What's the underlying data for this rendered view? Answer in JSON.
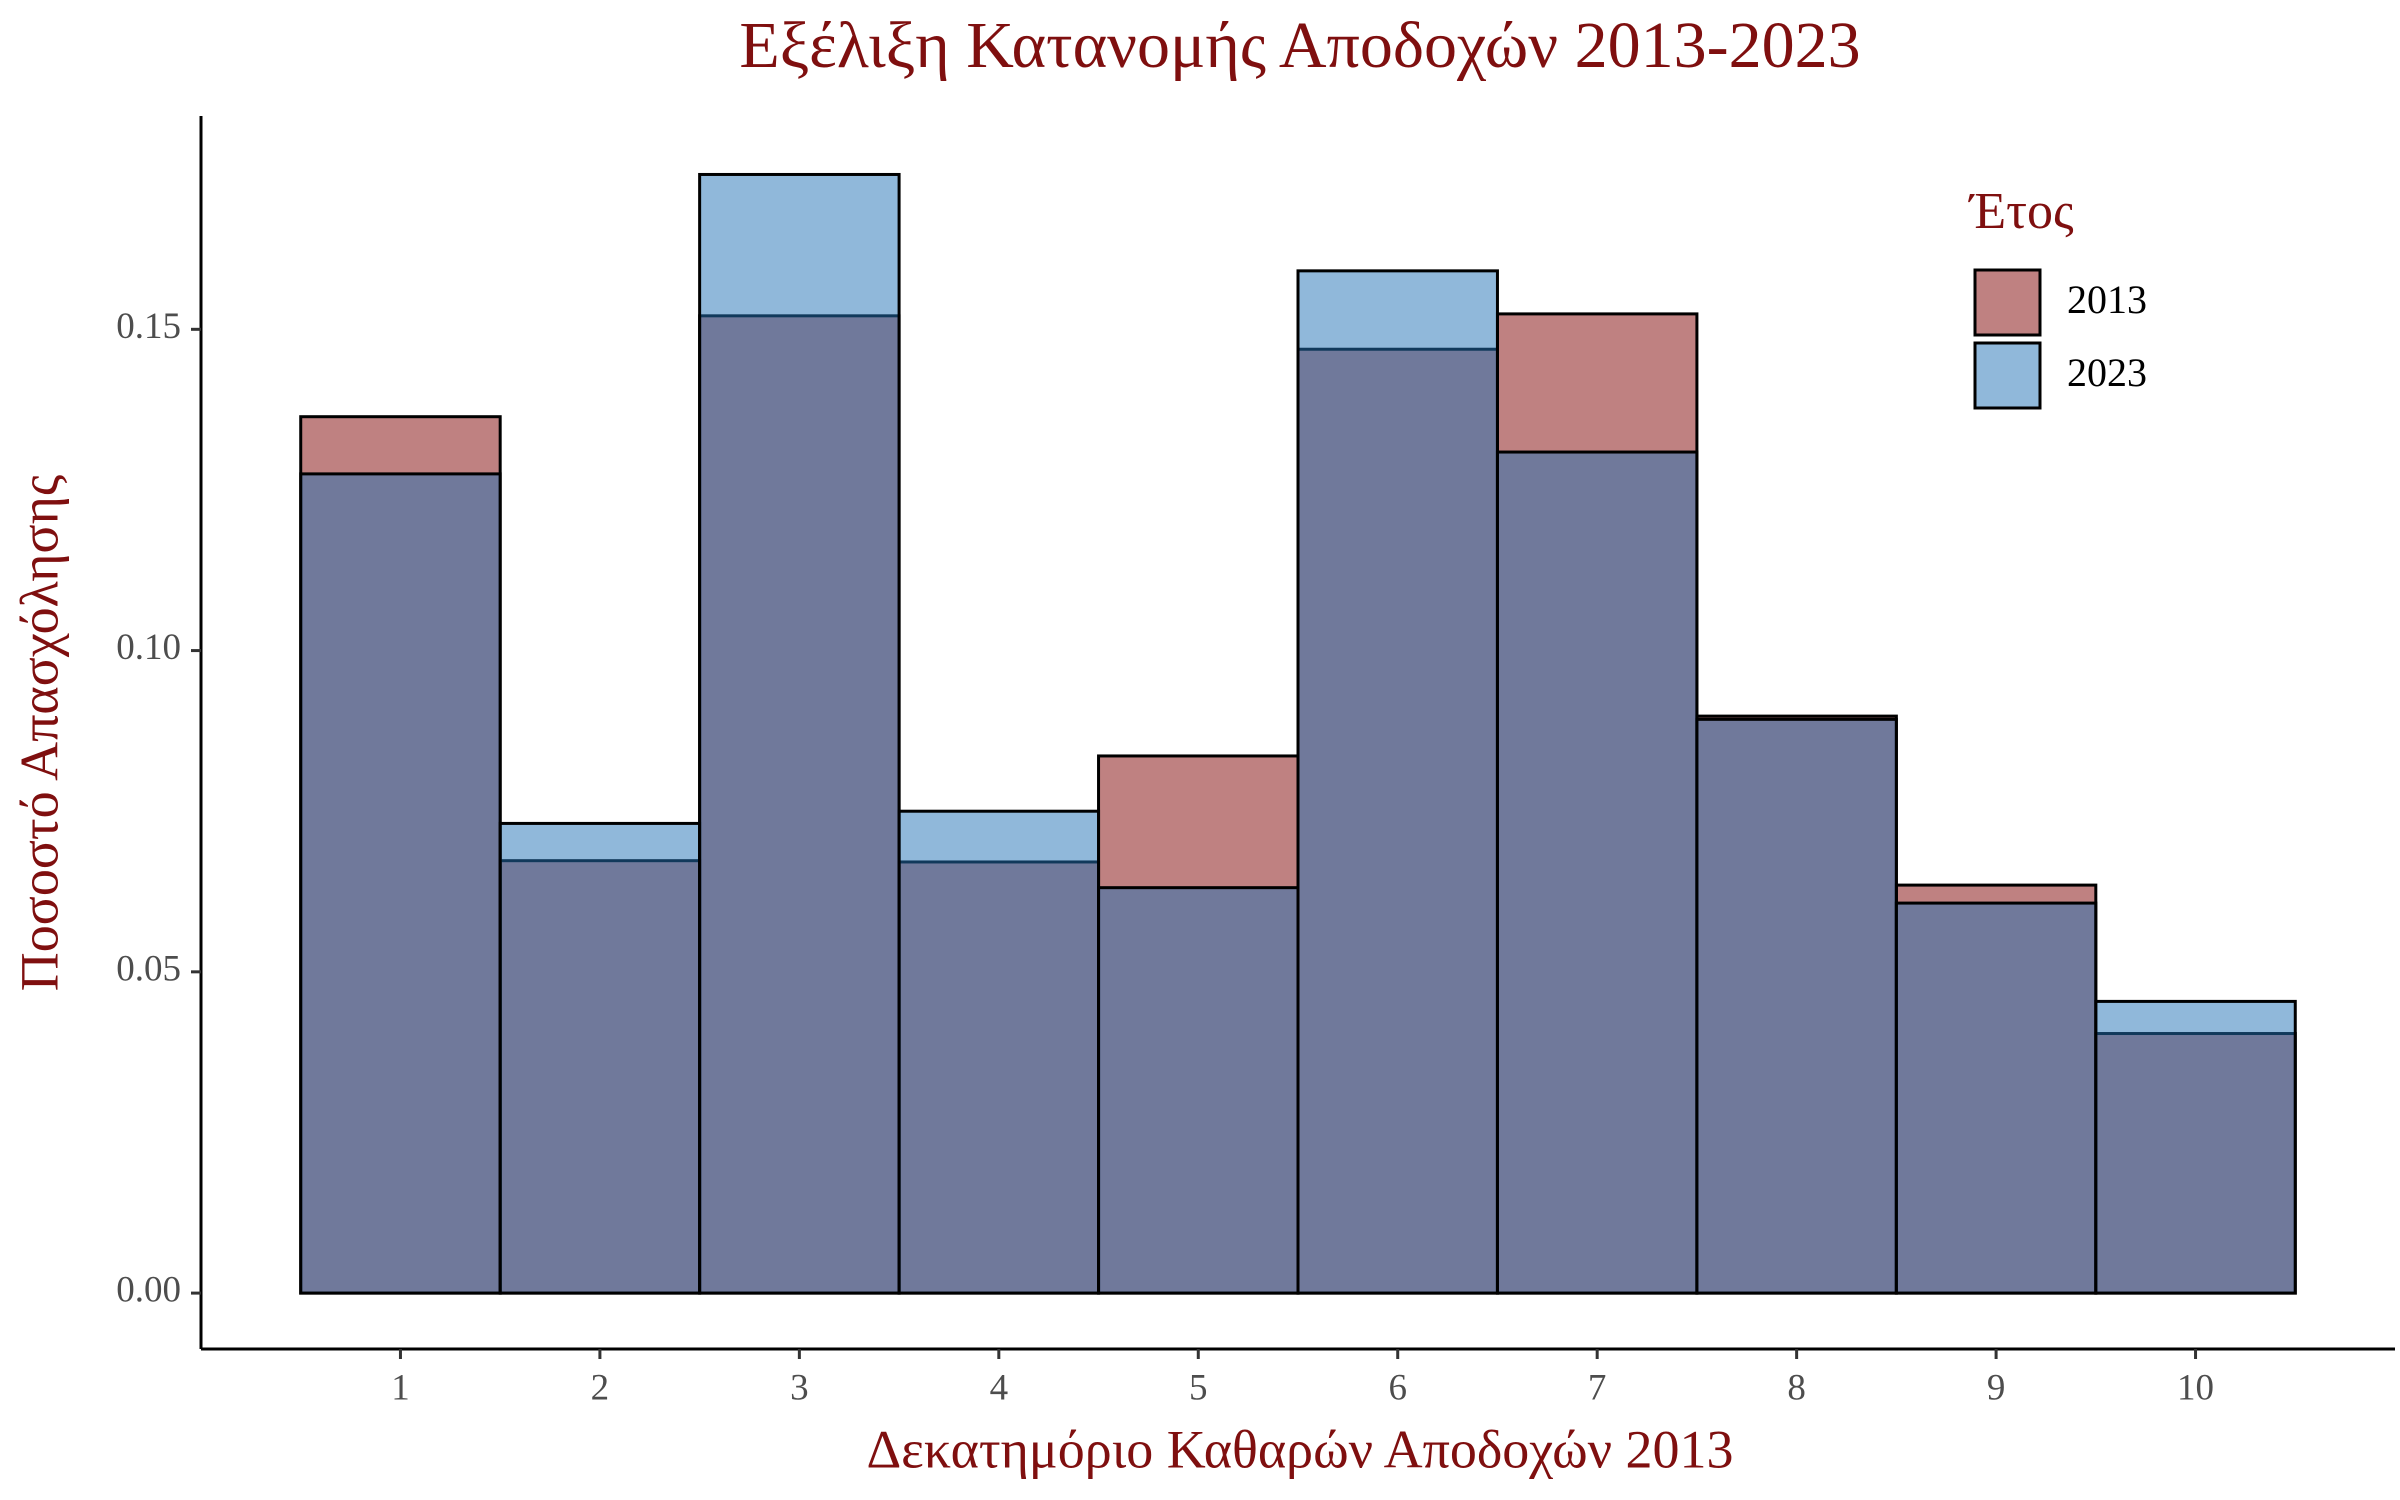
{
  "chart_data": {
    "type": "bar",
    "title": "Εξέλιξη Κατανομής Αποδοχών 2013-2023",
    "x_label": "Δεκατημόριο Καθαρών Αποδοχών 2013",
    "y_label": "Ποσοστό Απασχόλησης",
    "legend_title": "Έτος",
    "legend_position": "top-right",
    "x": [
      1,
      2,
      3,
      4,
      5,
      6,
      7,
      8,
      9,
      10
    ],
    "series": [
      {
        "name": "2013",
        "color": "#8b1a1a",
        "values": [
          0.1364,
          0.0673,
          0.1521,
          0.0671,
          0.0836,
          0.1469,
          0.1524,
          0.0898,
          0.0635,
          0.0404
        ]
      },
      {
        "name": "2023",
        "color": "#2171b5",
        "values": [
          0.1275,
          0.0731,
          0.1741,
          0.075,
          0.0631,
          0.1591,
          0.1309,
          0.0893,
          0.0607,
          0.0454
        ]
      }
    ],
    "xlim": [
      0,
      11
    ],
    "xticks": [
      1,
      2,
      3,
      4,
      5,
      6,
      7,
      8,
      9,
      10
    ],
    "ylim": [
      -0.0087,
      0.1832
    ],
    "yticks": [
      {
        "value": 0,
        "label": "0.00"
      },
      {
        "value": 0.05,
        "label": "0.05"
      },
      {
        "value": 0.1,
        "label": "0.10"
      },
      {
        "value": 0.15,
        "label": "0.15"
      }
    ]
  }
}
